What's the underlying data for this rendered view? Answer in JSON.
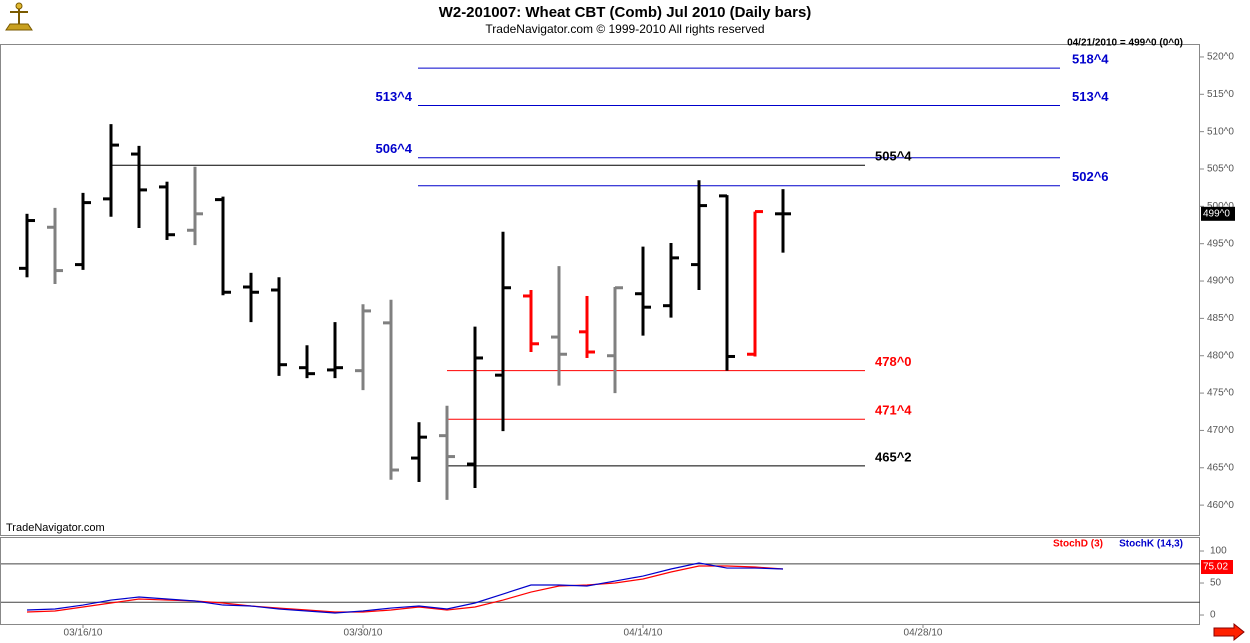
{
  "chart_data": {
    "type": "ohlc",
    "title": "W2-201007:  Wheat CBT (Comb) Jul 2010  (Daily bars)",
    "subtitle": "TradeNavigator.com © 1999-2010 All rights reserved",
    "status": "04/21/2010 = 499^0 (0^0)",
    "watermark": "TradeNavigator.com",
    "categories": [
      null,
      null,
      "03/16/10",
      null,
      null,
      null,
      null,
      null,
      null,
      null,
      null,
      null,
      "03/30/10",
      null,
      null,
      null,
      null,
      null,
      null,
      null,
      null,
      null,
      "04/14/10",
      null,
      null,
      null,
      null,
      null,
      null,
      null,
      null,
      null,
      "04/28/10",
      null,
      null,
      null,
      null,
      null,
      null,
      null,
      null,
      null
    ],
    "open": [
      491.7,
      497.2,
      492.2,
      501.0,
      507.0,
      502.6,
      496.8,
      500.9,
      489.2,
      488.8,
      478.4,
      478.1,
      478.0,
      484.4,
      466.3,
      469.3,
      465.5,
      477.4,
      488.0,
      482.5,
      483.2,
      480.0,
      488.3,
      486.7,
      492.2,
      501.4,
      480.2,
      499.0,
      null,
      null,
      null,
      null,
      null,
      null,
      null,
      null,
      null,
      null,
      null,
      null,
      null,
      null
    ],
    "high": [
      499.0,
      499.8,
      501.8,
      511.0,
      508.1,
      503.3,
      505.3,
      501.3,
      491.1,
      490.5,
      481.4,
      484.5,
      486.9,
      487.5,
      471.1,
      473.3,
      483.9,
      496.6,
      488.8,
      492.0,
      488.0,
      489.2,
      494.6,
      495.1,
      503.5,
      501.5,
      499.3,
      502.3,
      null,
      null,
      null,
      null,
      null,
      null,
      null,
      null,
      null,
      null,
      null,
      null,
      null,
      null
    ],
    "low": [
      490.5,
      489.6,
      491.5,
      498.6,
      497.1,
      495.5,
      494.8,
      488.1,
      484.5,
      477.3,
      477.0,
      477.0,
      475.4,
      463.4,
      463.1,
      460.7,
      462.3,
      469.9,
      480.5,
      476.0,
      479.7,
      475.0,
      482.7,
      485.1,
      488.8,
      478.0,
      479.9,
      493.8,
      null,
      null,
      null,
      null,
      null,
      null,
      null,
      null,
      null,
      null,
      null,
      null,
      null,
      null
    ],
    "close": [
      498.1,
      491.4,
      500.5,
      508.2,
      502.2,
      496.2,
      499.0,
      488.5,
      488.5,
      478.8,
      477.6,
      478.4,
      486.0,
      464.7,
      469.1,
      466.5,
      479.7,
      489.1,
      481.6,
      480.2,
      480.5,
      489.1,
      486.5,
      493.1,
      500.1,
      479.9,
      499.3,
      499.0,
      null,
      null,
      null,
      null,
      null,
      null,
      null,
      null,
      null,
      null,
      null,
      null,
      null,
      null
    ],
    "colors": [
      "#000000",
      "#808080",
      "#000000",
      "#000000",
      "#000000",
      "#000000",
      "#808080",
      "#000000",
      "#000000",
      "#000000",
      "#000000",
      "#000000",
      "#808080",
      "#808080",
      "#000000",
      "#808080",
      "#000000",
      "#000000",
      "#ff0000",
      "#808080",
      "#ff0000",
      "#808080",
      "#000000",
      "#000000",
      "#000000",
      "#000000",
      "#ff0000",
      "#000000",
      null,
      null,
      null,
      null,
      null,
      null,
      null,
      null,
      null,
      null,
      null,
      null,
      null,
      null
    ],
    "ylim": [
      456,
      521.6
    ],
    "yticks": [
      {
        "value": 460,
        "label": "460^0"
      },
      {
        "value": 465,
        "label": "465^0"
      },
      {
        "value": 470,
        "label": "470^0"
      },
      {
        "value": 475,
        "label": "475^0"
      },
      {
        "value": 480,
        "label": "480^0"
      },
      {
        "value": 485,
        "label": "485^0"
      },
      {
        "value": 490,
        "label": "490^0"
      },
      {
        "value": 495,
        "label": "495^0"
      },
      {
        "value": 500,
        "label": "500^0"
      },
      {
        "value": 505,
        "label": "505^0"
      },
      {
        "value": 510,
        "label": "510^0"
      },
      {
        "value": 515,
        "label": "515^0"
      },
      {
        "value": 520,
        "label": "520^0"
      }
    ],
    "last": {
      "value": 499,
      "label": "499^0"
    },
    "levels": [
      {
        "value": 518.5,
        "label": "518^4",
        "color": "#0000cc"
      },
      {
        "value": 513.5,
        "label": "513^4",
        "color": "#0000cc"
      },
      {
        "value": 506.5,
        "label": "506^4",
        "color": "#0000cc"
      },
      {
        "value": 505.5,
        "label": "505^4",
        "color": "#000000"
      },
      {
        "value": 502.75,
        "label": "502^6",
        "color": "#0000cc"
      },
      {
        "value": 478,
        "label": "478^0",
        "color": "#ff0000"
      },
      {
        "value": 471.5,
        "label": "471^4",
        "color": "#ff0000"
      },
      {
        "value": 465.25,
        "label": "465^2",
        "color": "#000000"
      }
    ],
    "indicator": {
      "type": "line",
      "series": [
        {
          "name": "StochD (3)",
          "color": "#ff0000",
          "values": [
            4.7,
            6.3,
            12.5,
            18.8,
            25,
            23.4,
            21.9,
            18.8,
            14.1,
            10.9,
            7.8,
            4.7,
            4.7,
            7.8,
            12.5,
            7.8,
            12.5,
            23.4,
            35.9,
            45.3,
            46.9,
            50,
            56.3,
            67.2,
            76.6,
            76.6,
            75,
            71.9,
            null,
            null,
            null,
            null,
            null,
            null,
            null,
            null,
            null,
            null,
            null,
            null,
            null,
            null
          ]
        },
        {
          "name": "StochK (14,3)",
          "color": "#0000cc",
          "values": [
            7.8,
            9.4,
            15.6,
            23.4,
            28.1,
            25,
            21.9,
            15.6,
            14.1,
            9.4,
            6.3,
            3.1,
            6.3,
            10.9,
            14.1,
            9.4,
            18.8,
            32.8,
            46.9,
            46.9,
            45.3,
            53.1,
            60.9,
            71.9,
            81.3,
            73.4,
            73.4,
            71.9,
            null,
            null,
            null,
            null,
            null,
            null,
            null,
            null,
            null,
            null,
            null,
            null,
            null,
            null
          ]
        }
      ],
      "last": 75.02,
      "ylim": [
        -15.6,
        121.9
      ],
      "yticks": [
        0,
        50,
        100
      ],
      "guides": [
        20,
        80
      ]
    }
  }
}
